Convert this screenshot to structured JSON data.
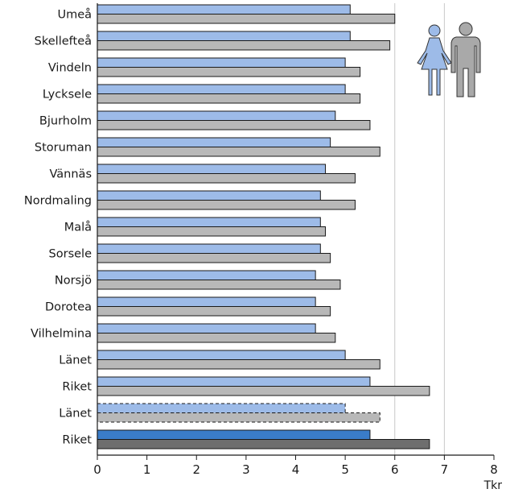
{
  "chart_data": {
    "type": "bar",
    "orientation": "horizontal",
    "categories": [
      "Umeå",
      "Skellefteå",
      "Vindeln",
      "Lycksele",
      "Bjurholm",
      "Storuman",
      "Vännäs",
      "Nordmaling",
      "Malå",
      "Sorsele",
      "Norsjö",
      "Dorotea",
      "Vilhelmina",
      "Länet",
      "Riket",
      "Länet",
      "Riket"
    ],
    "series": [
      {
        "icon": "woman-icon",
        "color": "#9dbbe8",
        "values": [
          5.1,
          5.1,
          5.0,
          5.0,
          4.8,
          4.7,
          4.6,
          4.5,
          4.5,
          4.5,
          4.4,
          4.4,
          4.4,
          5.0,
          5.5,
          5.0,
          5.5
        ]
      },
      {
        "icon": "man-icon",
        "color": "#b8b8b8",
        "values": [
          6.0,
          5.9,
          5.3,
          5.3,
          5.5,
          5.7,
          5.2,
          5.2,
          4.6,
          4.7,
          4.9,
          4.7,
          4.8,
          5.7,
          6.7,
          5.7,
          6.7
        ]
      }
    ],
    "highlight": {
      "dashed_row": 15,
      "dark_row": 16,
      "dark_colors": [
        "#3a7cc8",
        "#6e6e6e"
      ]
    },
    "xlim": [
      0,
      8
    ],
    "x_ticks": [
      0,
      1,
      2,
      3,
      4,
      5,
      6,
      7,
      8
    ],
    "x_unit": "Tkr",
    "gridlines_at": [
      6,
      7
    ],
    "legend": "top-right pictograms"
  }
}
